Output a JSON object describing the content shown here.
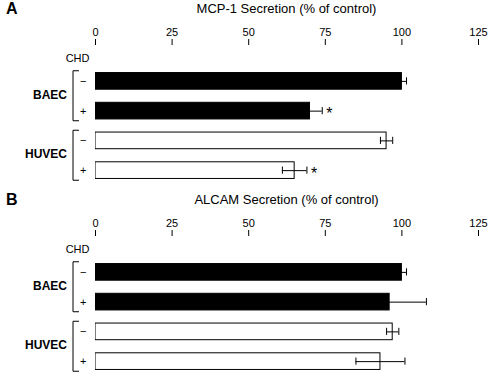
{
  "chart_data": [
    {
      "type": "bar",
      "orientation": "horizontal",
      "panel_label": "A",
      "title": "MCP-1 Secretion (% of control)",
      "category_header": "CHD",
      "categories": [
        "−",
        "+",
        "−",
        "+"
      ],
      "groups": [
        "BAEC",
        "BAEC",
        "HUVEC",
        "HUVEC"
      ],
      "values": [
        100,
        70,
        95,
        65
      ],
      "errors": [
        1.5,
        4,
        2,
        4
      ],
      "significance": [
        null,
        "*",
        null,
        "*"
      ],
      "colors": [
        "black",
        "black",
        "white",
        "white"
      ],
      "edge_color": "#000000",
      "xlim": [
        0,
        125
      ],
      "xticks": [
        0,
        25,
        50,
        75,
        100,
        125
      ],
      "grid": false
    },
    {
      "type": "bar",
      "orientation": "horizontal",
      "panel_label": "B",
      "title": "ALCAM Secretion (% of control)",
      "category_header": "CHD",
      "categories": [
        "−",
        "+",
        "−",
        "+"
      ],
      "groups": [
        "BAEC",
        "BAEC",
        "HUVEC",
        "HUVEC"
      ],
      "values": [
        100,
        96,
        97,
        93
      ],
      "errors": [
        1.5,
        12,
        2,
        8
      ],
      "significance": [
        null,
        null,
        null,
        null
      ],
      "colors": [
        "black",
        "black",
        "white",
        "white"
      ],
      "edge_color": "#000000",
      "xlim": [
        0,
        125
      ],
      "xticks": [
        0,
        25,
        50,
        75,
        100,
        125
      ],
      "grid": false
    }
  ]
}
